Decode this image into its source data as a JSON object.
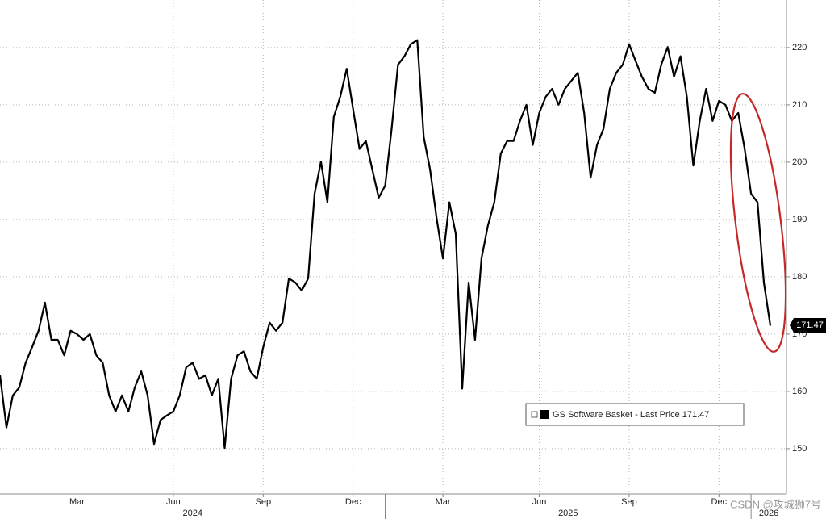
{
  "chart_data": {
    "type": "line",
    "categories": [
      null,
      null,
      null,
      null,
      null,
      null,
      null,
      null,
      null,
      null,
      null,
      null,
      "Mar",
      null,
      null,
      null,
      null,
      null,
      null,
      null,
      null,
      null,
      null,
      null,
      null,
      null,
      null,
      "Jun",
      null,
      null,
      null,
      null,
      null,
      null,
      null,
      null,
      null,
      null,
      null,
      null,
      null,
      "Sep",
      null,
      null,
      null,
      null,
      null,
      null,
      null,
      null,
      null,
      null,
      null,
      null,
      null,
      "Dec",
      null,
      null,
      null,
      null,
      null,
      null,
      null,
      null,
      null,
      null,
      null,
      null,
      null,
      "Mar",
      null,
      null,
      null,
      null,
      null,
      null,
      null,
      null,
      null,
      null,
      null,
      null,
      null,
      null,
      "Jun",
      null,
      null,
      null,
      null,
      null,
      null,
      null,
      null,
      null,
      null,
      null,
      null,
      null,
      "Sep",
      null,
      null,
      null,
      null,
      null,
      null,
      null,
      null,
      null,
      null,
      null,
      null,
      null,
      "Dec",
      null,
      null,
      null,
      null,
      null,
      null,
      null,
      null
    ],
    "years": [
      "2024",
      "2025",
      "2026"
    ],
    "series": [
      {
        "name": "GS Software Basket - Last Price 171.47",
        "color": "#000000",
        "values": [
          162.8,
          153.7,
          159.3,
          160.7,
          165,
          167.7,
          170.6,
          175.5,
          169,
          169,
          166.3,
          170.6,
          170,
          169,
          170,
          166.3,
          165,
          159.3,
          156.5,
          159.3,
          156.5,
          160.7,
          163.5,
          159.3,
          150.8,
          155,
          155.8,
          156.5,
          159.3,
          164.2,
          165,
          162.2,
          162.8,
          159.3,
          162.2,
          150.1,
          162.2,
          166.3,
          167,
          163.5,
          162.2,
          167.7,
          172,
          170.6,
          172,
          179.7,
          179,
          177.6,
          179.7,
          194.5,
          200.1,
          193,
          207.9,
          211.4,
          216.3,
          209.3,
          202.3,
          203.7,
          198.7,
          193.8,
          195.9,
          205.8,
          217,
          218.5,
          220.6,
          221.3,
          204.4,
          198.7,
          190.3,
          183.2,
          193,
          187.5,
          160.5,
          179,
          169,
          183.2,
          188.9,
          193,
          201.5,
          203.7,
          203.7,
          207.2,
          210,
          203,
          208.6,
          211.4,
          212.8,
          210,
          212.8,
          214.2,
          215.6,
          208.6,
          197.3,
          203,
          205.8,
          212.8,
          215.6,
          217,
          220.6,
          217.7,
          214.9,
          212.8,
          212.1,
          217,
          220.1,
          214.9,
          218.5,
          211.4,
          199.4,
          207.2,
          212.8,
          207.2,
          210.7,
          210,
          207.2,
          208.6,
          202.3,
          194.5,
          193,
          179,
          171.47
        ]
      }
    ],
    "ylim": [
      142.1,
      228.3
    ],
    "yticks": [
      150,
      160,
      170,
      180,
      190,
      200,
      210,
      220
    ],
    "y_axis_side": "right",
    "grid": true,
    "watermark": "CSDN @攻城狮7号"
  }
}
